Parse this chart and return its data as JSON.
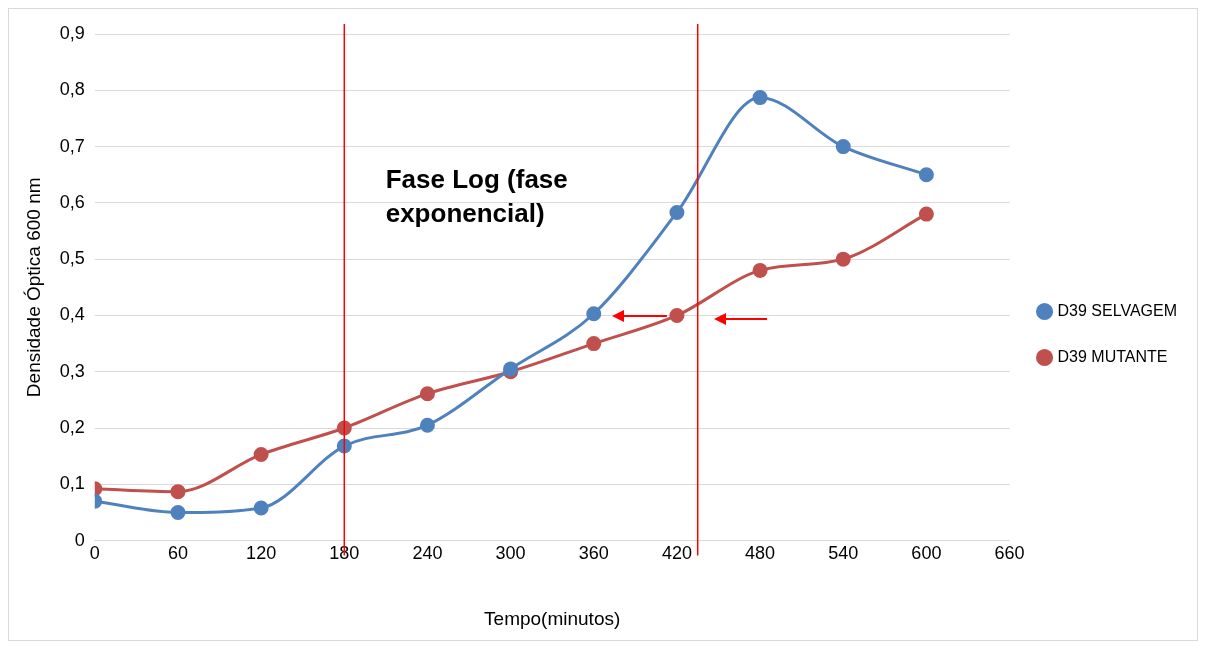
{
  "chart_data": {
    "type": "line",
    "xlabel": "Tempo(minutos)",
    "ylabel": "Densidade Óptica 600 nm",
    "x": [
      0,
      60,
      120,
      180,
      240,
      300,
      360,
      420,
      480,
      540,
      600
    ],
    "series": [
      {
        "name": "D39 SELVAGEM",
        "color": "#4f81bd",
        "values": [
          0.07,
          0.05,
          0.058,
          0.168,
          0.205,
          0.305,
          0.403,
          0.583,
          0.787,
          0.7,
          0.65
        ]
      },
      {
        "name": "D39 MUTANTE",
        "color": "#c0504d",
        "values": [
          0.092,
          0.087,
          0.153,
          0.2,
          0.261,
          0.3,
          0.35,
          0.4,
          0.48,
          0.5,
          0.58
        ]
      }
    ],
    "xlim": [
      0,
      660
    ],
    "xticks": [
      0,
      60,
      120,
      180,
      240,
      300,
      360,
      420,
      480,
      540,
      600,
      660
    ],
    "ylim": [
      0,
      0.9
    ],
    "yticks": [
      {
        "value": 0,
        "label": "0"
      },
      {
        "value": 0.1,
        "label": "0,1"
      },
      {
        "value": 0.2,
        "label": "0,2"
      },
      {
        "value": 0.3,
        "label": "0,3"
      },
      {
        "value": 0.4,
        "label": "0,4"
      },
      {
        "value": 0.5,
        "label": "0,5"
      },
      {
        "value": 0.6,
        "label": "0,6"
      },
      {
        "value": 0.7,
        "label": "0,7"
      },
      {
        "value": 0.8,
        "label": "0,8"
      },
      {
        "value": 0.9,
        "label": "0,9"
      }
    ],
    "grid": "y",
    "legend": "right",
    "marker": "circle",
    "line_style": "solid",
    "ref_lines": [
      {
        "axis": "x",
        "value": 180,
        "color": "#ff0000"
      },
      {
        "axis": "x",
        "value": 435,
        "color": "#ff0000"
      }
    ],
    "annotations": [
      "Fase Log (fase exponencial)"
    ]
  }
}
